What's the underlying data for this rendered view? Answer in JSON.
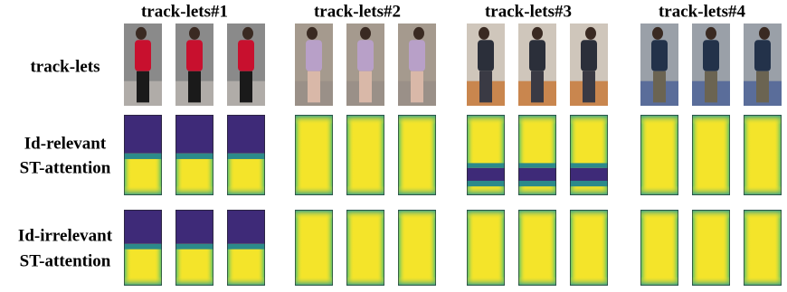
{
  "columns": [
    "track-lets#1",
    "track-lets#2",
    "track-lets#3",
    "track-lets#4"
  ],
  "rows": [
    {
      "label_lines": [
        "track-lets"
      ]
    },
    {
      "label_lines": [
        "Id-relevant",
        "ST-attention"
      ]
    },
    {
      "label_lines": [
        "Id-irrelevant",
        "ST-attention"
      ]
    }
  ]
}
